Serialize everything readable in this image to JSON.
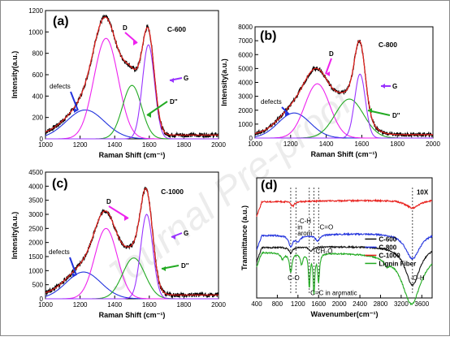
{
  "colors": {
    "raw": "#000000",
    "fit": "#e8201c",
    "defects": "#2233dd",
    "D": "#ee22ee",
    "Dpp": "#22aa22",
    "G": "#9933ff",
    "c600": "#111111",
    "c800": "#2233dd",
    "c1000": "#e8201c",
    "lignin": "#22aa22"
  },
  "watermark": "Journal Pre-proof",
  "chart_data": [
    {
      "type": "line",
      "panel": "(a)",
      "sample": "C-600",
      "xlabel": "Raman Shift (cm⁻¹)",
      "ylabel": "Intensity(a.u.)",
      "xlim": [
        1000,
        2000
      ],
      "ylim": [
        0,
        1200
      ],
      "xticks": [
        "1000",
        "1200",
        "1400",
        "1600",
        "1800",
        "2000"
      ],
      "yticks": [
        "0",
        "200",
        "400",
        "600",
        "800",
        "1000",
        "1200"
      ],
      "components": [
        {
          "name": "defects",
          "center": 1230,
          "height": 270,
          "width": 110
        },
        {
          "name": "D",
          "center": 1350,
          "height": 940,
          "width": 70
        },
        {
          "name": "D''",
          "center": 1500,
          "height": 500,
          "width": 55
        },
        {
          "name": "G",
          "center": 1595,
          "height": 880,
          "width": 35
        }
      ],
      "labels": [
        {
          "text": "defects",
          "color": "raw"
        },
        {
          "text": "D",
          "color": "D"
        },
        {
          "text": "G",
          "color": "G"
        },
        {
          "text": "D''",
          "color": "Dpp"
        }
      ]
    },
    {
      "type": "line",
      "panel": "(b)",
      "sample": "C-800",
      "xlabel": "Raman Shift (cm⁻¹)",
      "ylabel": "Intensity(a.u.)",
      "xlim": [
        1000,
        2000
      ],
      "ylim": [
        0,
        8000
      ],
      "xticks": [
        "1000",
        "1200",
        "1400",
        "1600",
        "1800",
        "2000"
      ],
      "yticks": [
        "0",
        "1000",
        "2000",
        "3000",
        "4000",
        "5000",
        "6000",
        "7000",
        "8000"
      ],
      "components": [
        {
          "name": "defects",
          "center": 1220,
          "height": 1800,
          "width": 90
        },
        {
          "name": "D",
          "center": 1350,
          "height": 3900,
          "width": 70
        },
        {
          "name": "D''",
          "center": 1530,
          "height": 2800,
          "width": 80
        },
        {
          "name": "G",
          "center": 1590,
          "height": 4600,
          "width": 30
        }
      ],
      "labels": [
        {
          "text": "defects",
          "color": "raw"
        },
        {
          "text": "D",
          "color": "D"
        },
        {
          "text": "G",
          "color": "G"
        },
        {
          "text": "D''",
          "color": "Dpp"
        }
      ]
    },
    {
      "type": "line",
      "panel": "(c)",
      "sample": "C-1000",
      "xlabel": "Raman Shift (cm⁻¹)",
      "ylabel": "Intensity(a.u.)",
      "xlim": [
        1000,
        2000
      ],
      "ylim": [
        0,
        4500
      ],
      "xticks": [
        "1000",
        "1200",
        "1400",
        "1600",
        "1800",
        "2000"
      ],
      "yticks": [
        "0",
        "500",
        "1000",
        "1500",
        "2000",
        "2500",
        "3000",
        "3500",
        "4000",
        "4500"
      ],
      "components": [
        {
          "name": "defects",
          "center": 1220,
          "height": 950,
          "width": 100
        },
        {
          "name": "D",
          "center": 1350,
          "height": 2500,
          "width": 65
        },
        {
          "name": "D''",
          "center": 1510,
          "height": 1450,
          "width": 65
        },
        {
          "name": "G",
          "center": 1585,
          "height": 3000,
          "width": 35
        }
      ],
      "labels": [
        {
          "text": "defects",
          "color": "raw"
        },
        {
          "text": "D",
          "color": "D"
        },
        {
          "text": "G",
          "color": "G"
        },
        {
          "text": "D''",
          "color": "Dpp"
        }
      ]
    },
    {
      "type": "line",
      "panel": "(d)",
      "xlabel": "Wavenumber(cm⁻¹)",
      "ylabel": "Tranmittance (a.u.)",
      "xlim": [
        400,
        3800
      ],
      "xticks": [
        "400",
        "800",
        "1200",
        "1600",
        "2000",
        "2400",
        "2800",
        "3200",
        "3600"
      ],
      "legend": [
        "C-600",
        "C-800",
        "C-1000",
        "Lignin Fiber"
      ],
      "legend_position": "center-right",
      "annotation_10x": "10X",
      "annotations": [
        "-C-H",
        "in",
        "arom",
        "C=O",
        "-CH₂O",
        "C-O",
        "C=C in aromatic",
        "-O-H"
      ],
      "markers": [
        1060,
        1160,
        1420,
        1510,
        1600,
        3420
      ],
      "series": [
        {
          "name": "C-600",
          "color": "c600",
          "offset": 0.42,
          "dips": [
            [
              1060,
              0.05,
              40
            ],
            [
              1450,
              0.03,
              40
            ],
            [
              3420,
              0.33,
              170
            ]
          ],
          "slope": 0.02
        },
        {
          "name": "C-800",
          "color": "c800",
          "offset": 0.52,
          "dips": [
            [
              1060,
              0.09,
              50
            ],
            [
              1200,
              0.05,
              60
            ],
            [
              1580,
              0.05,
              60
            ],
            [
              3420,
              0.22,
              170
            ]
          ],
          "slope": 0.03
        },
        {
          "name": "C-1000",
          "color": "c1000",
          "offset": 0.8,
          "dips": [
            [
              1100,
              0.04,
              40
            ],
            [
              3420,
              0.07,
              160
            ]
          ],
          "slope": 0.02
        },
        {
          "name": "Lignin Fiber",
          "color": "lignin",
          "offset": 0.38,
          "dips": [
            [
              900,
              0.05,
              40
            ],
            [
              1060,
              0.16,
              30
            ],
            [
              1270,
              0.09,
              30
            ],
            [
              1420,
              0.28,
              18
            ],
            [
              1510,
              0.33,
              18
            ],
            [
              1600,
              0.23,
              22
            ],
            [
              2920,
              0.05,
              60
            ],
            [
              3400,
              0.43,
              220
            ]
          ],
          "slope": 0.0
        }
      ]
    }
  ]
}
